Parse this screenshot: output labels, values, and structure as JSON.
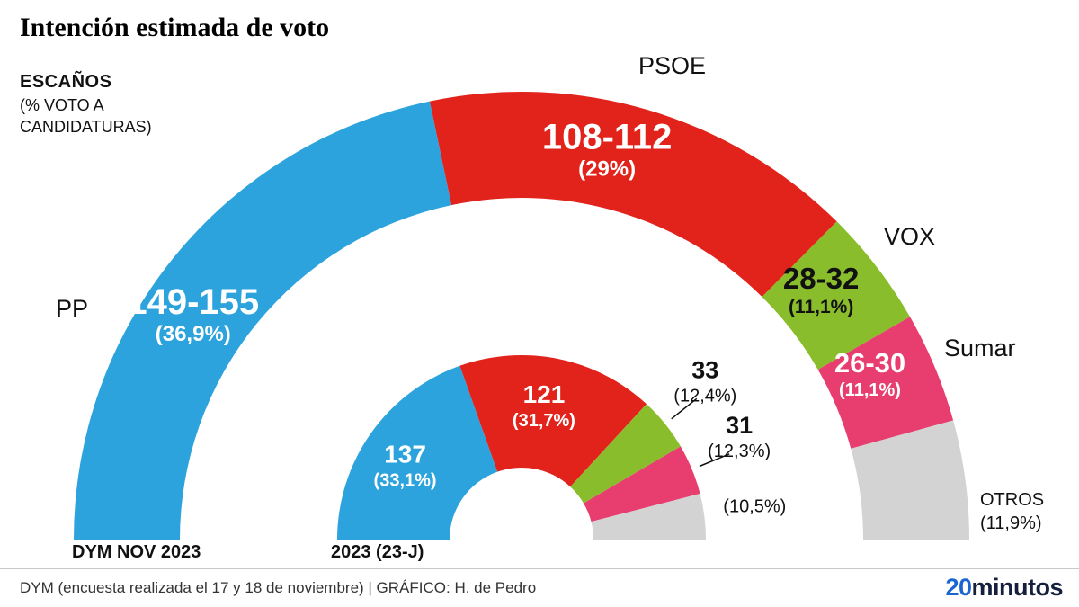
{
  "header": {
    "title": "Intención estimada de voto",
    "unit_label": "ESCAÑOS",
    "unit_sublabel": "(% VOTO A CANDIDATURAS)"
  },
  "chart_data": {
    "type": "half-donut",
    "title": "Intención estimada de voto",
    "unit": "Escaños (% voto a candidaturas)",
    "rings": [
      {
        "name": "DYM NOV 2023",
        "key": "dym-nov-2023",
        "segments": [
          {
            "party": "PP",
            "seats_label": "149-155",
            "seats_value": 152,
            "pct": 36.9,
            "pct_label": "(36,9%)",
            "color": "#2CA3DC",
            "label_color": "#FFFFFF"
          },
          {
            "party": "PSOE",
            "seats_label": "108-112",
            "seats_value": 110,
            "pct": 29.0,
            "pct_label": "(29%)",
            "color": "#E2231B",
            "label_color": "#FFFFFF"
          },
          {
            "party": "VOX",
            "seats_label": "28-32",
            "seats_value": 30,
            "pct": 11.1,
            "pct_label": "(11,1%)",
            "color": "#8ABD2C",
            "label_color": "#111111"
          },
          {
            "party": "Sumar",
            "seats_label": "26-30",
            "seats_value": 28,
            "pct": 11.1,
            "pct_label": "(11,1%)",
            "color": "#E73E6F",
            "label_color": "#FFFFFF"
          },
          {
            "party": "OTROS",
            "seats_label": "",
            "seats_value": 30,
            "pct": 11.9,
            "pct_label": "(11,9%)",
            "color": "#D3D3D3",
            "label_color": "#111111"
          }
        ]
      },
      {
        "name": "2023 (23-J)",
        "key": "2023-23j",
        "segments": [
          {
            "party": "PP",
            "seats_label": "137",
            "seats_value": 137,
            "pct": 33.1,
            "pct_label": "(33,1%)",
            "color": "#2CA3DC",
            "label_color": "#FFFFFF"
          },
          {
            "party": "PSOE",
            "seats_label": "121",
            "seats_value": 121,
            "pct": 31.7,
            "pct_label": "(31,7%)",
            "color": "#E2231B",
            "label_color": "#FFFFFF"
          },
          {
            "party": "VOX",
            "seats_label": "33",
            "seats_value": 33,
            "pct": 12.4,
            "pct_label": "(12,4%)",
            "color": "#8ABD2C",
            "label_color": "#111111"
          },
          {
            "party": "Sumar",
            "seats_label": "31",
            "seats_value": 31,
            "pct": 12.3,
            "pct_label": "(12,3%)",
            "color": "#E73E6F",
            "label_color": "#111111"
          },
          {
            "party": "OTROS",
            "seats_label": "",
            "seats_value": 28,
            "pct": 10.5,
            "pct_label": "(10,5%)",
            "color": "#D3D3D3",
            "label_color": "#111111"
          }
        ]
      }
    ]
  },
  "footer": {
    "source": "DYM (encuesta realizada el 17 y 18 de noviembre)  |  GRÁFICO: H. de Pedro",
    "brand": {
      "part1": "20",
      "part2": "minutos"
    }
  }
}
